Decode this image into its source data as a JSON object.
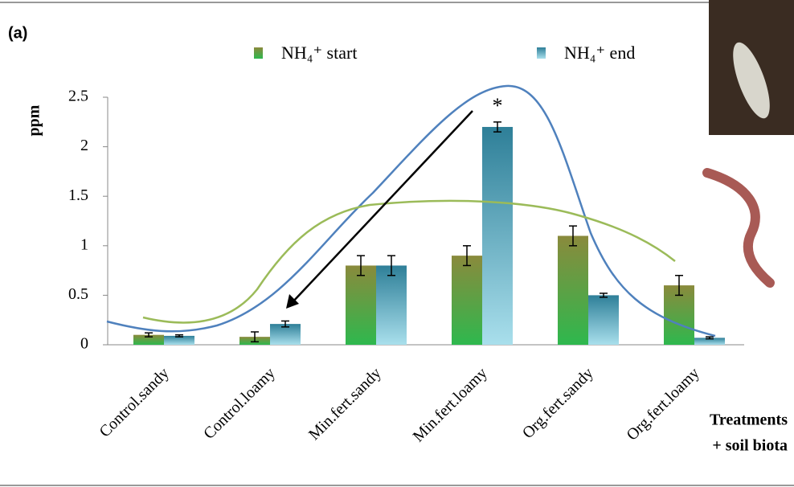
{
  "chart_data": {
    "type": "bar",
    "panel_label": "(a)",
    "y_label": "ppm",
    "x_label_lines": [
      "Treatments",
      "+ soil biota"
    ],
    "categories": [
      "Control.sandy",
      "Control.loamy",
      "Min.fert.sandy",
      "Min.fert.loamy",
      "Org.fert.sandy",
      "Org.fert.loamy"
    ],
    "series": [
      {
        "name": "NH₄⁺ start",
        "color": "#3aae4c",
        "values": [
          0.1,
          0.08,
          0.8,
          0.9,
          1.1,
          0.6
        ],
        "errors": [
          0.02,
          0.05,
          0.1,
          0.1,
          0.1,
          0.1
        ]
      },
      {
        "name": "NH₄⁺ end",
        "color": "#8fd0e2",
        "values": [
          0.09,
          0.21,
          0.8,
          2.2,
          0.5,
          0.07
        ],
        "errors": [
          0.01,
          0.03,
          0.1,
          0.05,
          0.02,
          0.01
        ]
      }
    ],
    "annotation": "*",
    "ylim": [
      0,
      2.5
    ],
    "yticks": [
      0,
      0.5,
      1,
      1.5,
      2,
      2.5
    ]
  }
}
